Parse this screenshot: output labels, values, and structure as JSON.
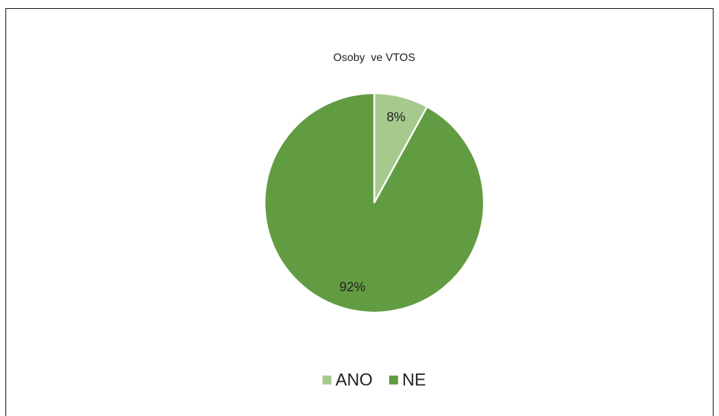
{
  "chart_data": {
    "type": "pie",
    "title": "Osoby  ve VTOS",
    "categories": [
      "ANO",
      "NE"
    ],
    "values": [
      8,
      92
    ],
    "value_labels": [
      "8%",
      "92%"
    ],
    "colors": [
      "#a6ca8e",
      "#629c42"
    ],
    "legend": "bottom"
  }
}
